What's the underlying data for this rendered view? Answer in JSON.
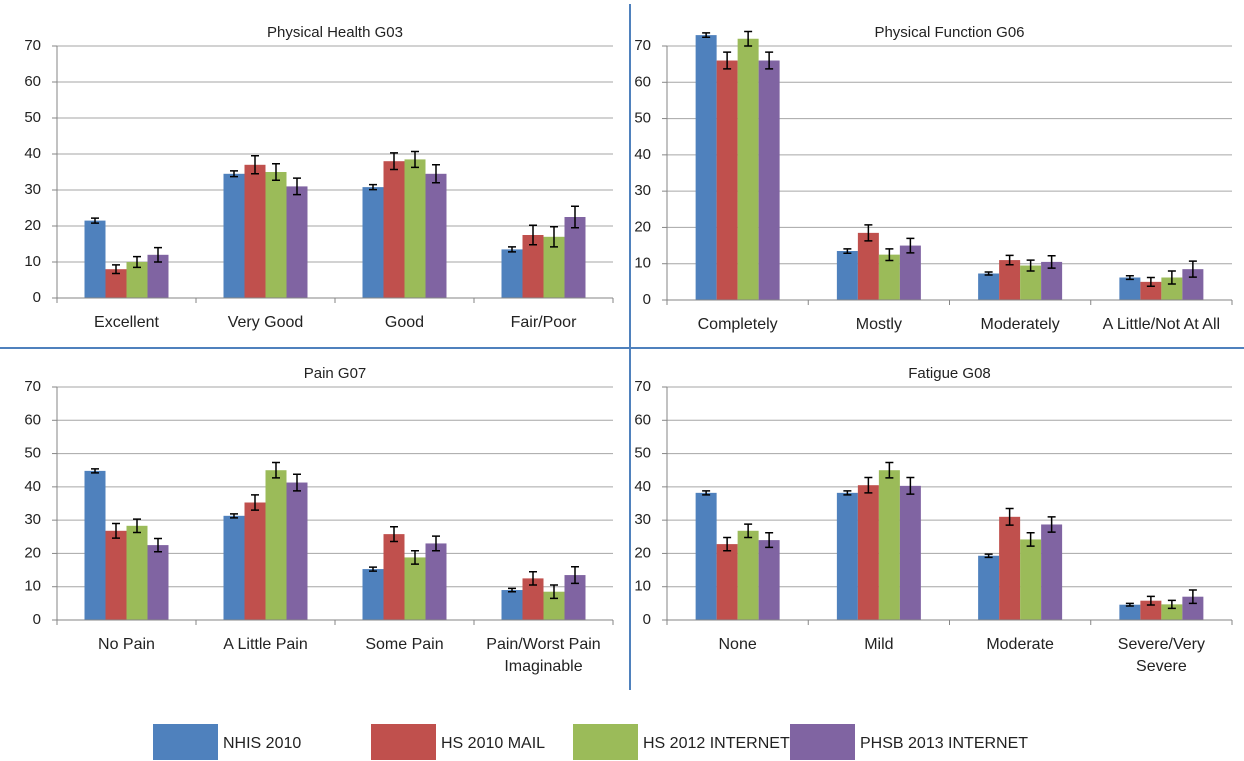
{
  "legend": [
    {
      "name": "NHIS 2010",
      "color": "#4f81bd"
    },
    {
      "name": "HS 2010 MAIL",
      "color": "#c0504d"
    },
    {
      "name": "HS 2012 INTERNET",
      "color": "#9bbb59"
    },
    {
      "name": "PHSB 2013 INTERNET",
      "color": "#8064a2"
    }
  ],
  "chart_data": [
    {
      "type": "bar",
      "title": "Physical Health G03",
      "categories": [
        "Excellent",
        "Very Good",
        "Good",
        "Fair/Poor"
      ],
      "series": [
        {
          "values": [
            21.5,
            34.5,
            30.8,
            13.5
          ],
          "errors": [
            0.7,
            0.8,
            0.7,
            0.7
          ]
        },
        {
          "values": [
            8,
            37,
            38,
            17.5
          ],
          "errors": [
            1.2,
            2.5,
            2.3,
            2.7
          ]
        },
        {
          "values": [
            10,
            35,
            38.5,
            17
          ],
          "errors": [
            1.5,
            2.3,
            2.2,
            2.8
          ]
        },
        {
          "values": [
            12,
            31,
            34.5,
            22.5
          ],
          "errors": [
            2,
            2.3,
            2.5,
            3
          ]
        }
      ],
      "ylim": [
        0,
        70
      ],
      "yticks": [
        0,
        10,
        20,
        30,
        40,
        50,
        60,
        70
      ],
      "grid": true
    },
    {
      "type": "bar",
      "title": "Physical Function G06",
      "categories": [
        "Completely",
        "Mostly",
        "Moderately",
        "A Little/Not At All"
      ],
      "series": [
        {
          "values": [
            73,
            13.5,
            7.3,
            6.2
          ],
          "errors": [
            0.6,
            0.6,
            0.4,
            0.5
          ]
        },
        {
          "values": [
            66,
            18.5,
            11,
            5
          ],
          "errors": [
            2.3,
            2.2,
            1.3,
            1.2
          ]
        },
        {
          "values": [
            72,
            12.5,
            9.5,
            6.2
          ],
          "errors": [
            2,
            1.6,
            1.5,
            1.8
          ]
        },
        {
          "values": [
            66,
            15,
            10.5,
            8.5
          ],
          "errors": [
            2.3,
            2,
            1.7,
            2.2
          ]
        }
      ],
      "ylim": [
        0,
        70
      ],
      "yticks": [
        0,
        10,
        20,
        30,
        40,
        50,
        60,
        70
      ],
      "grid": true
    },
    {
      "type": "bar",
      "title": "Pain G07",
      "categories": [
        "No Pain",
        "A Little Pain",
        "Some Pain",
        "Pain/Worst Pain\nImaginable"
      ],
      "series": [
        {
          "values": [
            44.8,
            31.3,
            15.3,
            9
          ],
          "errors": [
            0.6,
            0.6,
            0.6,
            0.5
          ]
        },
        {
          "values": [
            26.8,
            35.3,
            25.8,
            12.5
          ],
          "errors": [
            2.2,
            2.3,
            2.2,
            2
          ]
        },
        {
          "values": [
            28.3,
            45,
            18.8,
            8.5
          ],
          "errors": [
            2,
            2.3,
            2,
            2
          ]
        },
        {
          "values": [
            22.5,
            41.3,
            23,
            13.5
          ],
          "errors": [
            2,
            2.5,
            2.2,
            2.5
          ]
        }
      ],
      "ylim": [
        0,
        70
      ],
      "yticks": [
        0,
        10,
        20,
        30,
        40,
        50,
        60,
        70
      ],
      "grid": true
    },
    {
      "type": "bar",
      "title": "Fatigue G08",
      "categories": [
        "None",
        "Mild",
        "Moderate",
        "Severe/Very\nSevere"
      ],
      "series": [
        {
          "values": [
            38.2,
            38.2,
            19.3,
            4.6
          ],
          "errors": [
            0.6,
            0.6,
            0.5,
            0.4
          ]
        },
        {
          "values": [
            22.8,
            40.5,
            31,
            5.8
          ],
          "errors": [
            2,
            2.3,
            2.5,
            1.3
          ]
        },
        {
          "values": [
            26.8,
            45,
            24.2,
            4.7
          ],
          "errors": [
            2,
            2.3,
            2,
            1.2
          ]
        },
        {
          "values": [
            24,
            40.3,
            28.7,
            7
          ],
          "errors": [
            2.2,
            2.5,
            2.3,
            2
          ]
        }
      ],
      "ylim": [
        0,
        70
      ],
      "yticks": [
        0,
        10,
        20,
        30,
        40,
        50,
        60,
        70
      ],
      "grid": true
    }
  ]
}
